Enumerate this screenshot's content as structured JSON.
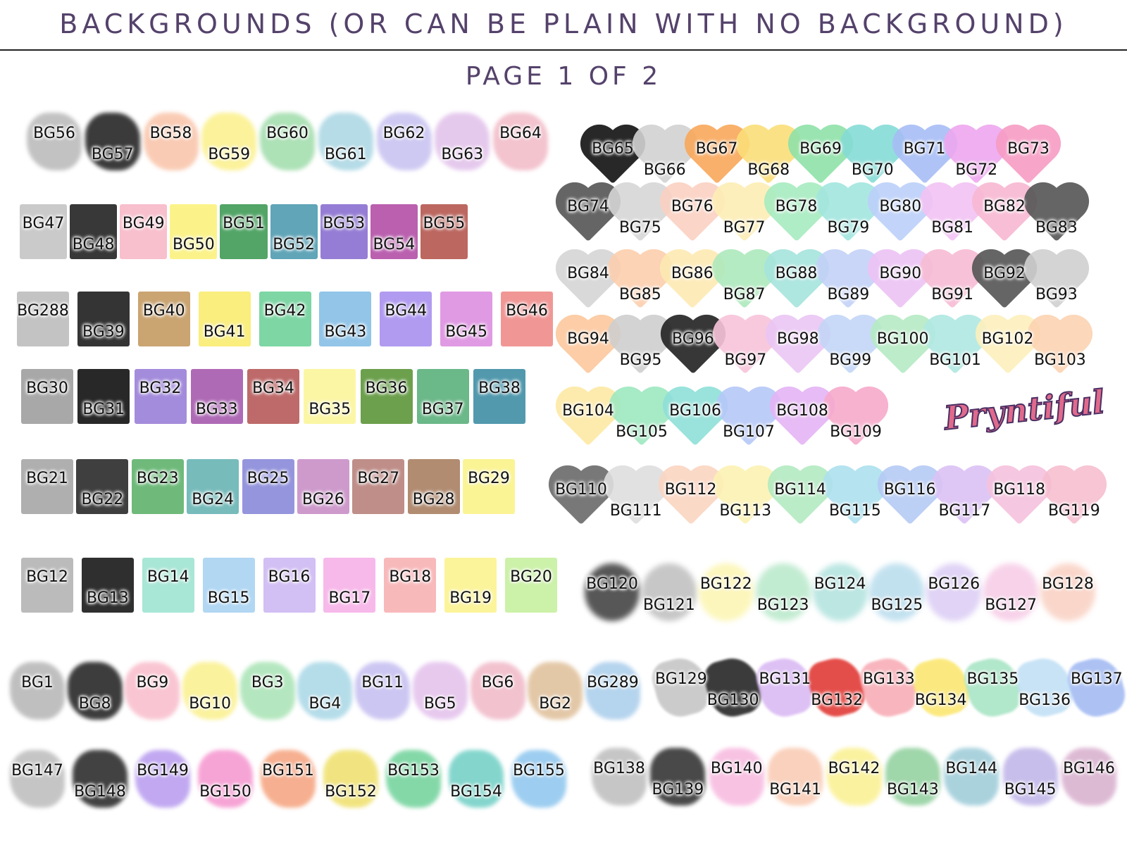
{
  "header": {
    "title": "BACKGROUNDS (OR CAN BE PLAIN WITH NO BACKGROUND)",
    "page": "PAGE 1 OF 2"
  },
  "logo": {
    "text": "Pryntiful",
    "colors": {
      "fill": "#e06a8c",
      "outline": "#4a2f63"
    }
  },
  "rows": [
    {
      "id": "r1",
      "shape": "splotch",
      "items": [
        [
          "BG56",
          "#b8b8b8"
        ],
        [
          "BG57",
          "#1a1a1a"
        ],
        [
          "BG58",
          "#f9c3a8"
        ],
        [
          "BG59",
          "#fbf08a"
        ],
        [
          "BG60",
          "#9fdcaa"
        ],
        [
          "BG61",
          "#a9d6e3"
        ],
        [
          "BG62",
          "#c6c0f0"
        ],
        [
          "BG63",
          "#e1c0ea"
        ],
        [
          "BG64",
          "#f1b9c6"
        ]
      ]
    },
    {
      "id": "r2",
      "shape": "square",
      "items": [
        [
          "BG47",
          "#c4c4c4"
        ],
        [
          "BG48",
          "#222"
        ],
        [
          "BG49",
          "#f7b8c8"
        ],
        [
          "BG50",
          "#fbf27c"
        ],
        [
          "BG51",
          "#3f9b56"
        ],
        [
          "BG52",
          "#4f9bb0"
        ],
        [
          "BG53",
          "#8a6fd0"
        ],
        [
          "BG54",
          "#b24fa6"
        ],
        [
          "BG55",
          "#b5574f"
        ]
      ]
    },
    {
      "id": "r3",
      "shape": "square",
      "items": [
        [
          "BG288",
          "#bdbdbd"
        ],
        [
          "BG39",
          "#1e1e1e"
        ],
        [
          "BG40",
          "#c49a62"
        ],
        [
          "BG41",
          "#f8ec70"
        ],
        [
          "BG42",
          "#6fd19a"
        ],
        [
          "BG43",
          "#86bfe5"
        ],
        [
          "BG44",
          "#a890ee"
        ],
        [
          "BG45",
          "#dd8fe0"
        ],
        [
          "BG46",
          "#ee8c8a"
        ]
      ]
    },
    {
      "id": "r4",
      "shape": "square",
      "items": [
        [
          "BG30",
          "#9e9e9e"
        ],
        [
          "BG31",
          "#111"
        ],
        [
          "BG32",
          "#9a7fd8"
        ],
        [
          "BG33",
          "#a65aae"
        ],
        [
          "BG34",
          "#b75a5a"
        ],
        [
          "BG35",
          "#fbf59a"
        ],
        [
          "BG36",
          "#5c963a"
        ],
        [
          "BG37",
          "#5bb07c"
        ],
        [
          "BG38",
          "#3f8ea5"
        ]
      ]
    },
    {
      "id": "r5",
      "shape": "square",
      "items": [
        [
          "BG21",
          "#a6a6a6"
        ],
        [
          "BG22",
          "#2a2a2a"
        ],
        [
          "BG23",
          "#5fb26d"
        ],
        [
          "BG24",
          "#68b4b4"
        ],
        [
          "BG25",
          "#8a8ad9"
        ],
        [
          "BG26",
          "#c98fc7"
        ],
        [
          "BG27",
          "#b8827c"
        ],
        [
          "BG28",
          "#a88062"
        ],
        [
          "BG29",
          "#faf38a"
        ]
      ]
    },
    {
      "id": "r6",
      "shape": "square",
      "items": [
        [
          "BG12",
          "#b4b4b4"
        ],
        [
          "BG13",
          "#181818"
        ],
        [
          "BG14",
          "#9fe3d0"
        ],
        [
          "BG15",
          "#a9d3f2"
        ],
        [
          "BG16",
          "#cdb8f3"
        ],
        [
          "BG17",
          "#f6b1e8"
        ],
        [
          "BG18",
          "#f7b1b4"
        ],
        [
          "BG19",
          "#fbf38f"
        ],
        [
          "BG20",
          "#c6ef9e"
        ]
      ]
    },
    {
      "id": "r7",
      "shape": "splotch",
      "items": [
        [
          "BG1",
          "#b5b5b5"
        ],
        [
          "BG8",
          "#1c1c1c"
        ],
        [
          "BG9",
          "#f8bccb"
        ],
        [
          "BG10",
          "#faf08c"
        ],
        [
          "BG3",
          "#a8e3b4"
        ],
        [
          "BG4",
          "#a8d7e6"
        ],
        [
          "BG11",
          "#c4bdf0"
        ],
        [
          "BG5",
          "#e3c0ec"
        ],
        [
          "BG6",
          "#f0b8c7"
        ],
        [
          "BG2",
          "#dfbf99"
        ],
        [
          "BG289",
          "#a9cdeb"
        ]
      ]
    },
    {
      "id": "r8",
      "shape": "splotch",
      "items": [
        [
          "BG147",
          "#bcbcbc"
        ],
        [
          "BG148",
          "#222"
        ],
        [
          "BG149",
          "#b79aef"
        ],
        [
          "BG150",
          "#f595cf"
        ],
        [
          "BG151",
          "#f5a27d"
        ],
        [
          "BG152",
          "#efe06a"
        ],
        [
          "BG153",
          "#6fd29a"
        ],
        [
          "BG154",
          "#6fcfc5"
        ],
        [
          "BG155",
          "#8cc5ee"
        ]
      ]
    },
    {
      "id": "h1",
      "shape": "heart",
      "items": [
        [
          "BG65",
          "#111"
        ],
        [
          "BG66",
          "#d2d2d2"
        ],
        [
          "BG67",
          "#f9a85a"
        ],
        [
          "BG68",
          "#fbde78"
        ],
        [
          "BG69",
          "#8fe2a8"
        ],
        [
          "BG70",
          "#86dcd6"
        ],
        [
          "BG71",
          "#a7bdf6"
        ],
        [
          "BG72",
          "#eea7ef"
        ],
        [
          "BG73",
          "#f79cc4"
        ]
      ]
    },
    {
      "id": "h2",
      "shape": "heart",
      "items": [
        [
          "BG74",
          "#555"
        ],
        [
          "BG75",
          "#d6d6d6"
        ],
        [
          "BG76",
          "#fbd1c2"
        ],
        [
          "BG77",
          "#fdeeb5"
        ],
        [
          "BG78",
          "#a7ecc0"
        ],
        [
          "BG79",
          "#a3e6df"
        ],
        [
          "BG80",
          "#bcd0fa"
        ],
        [
          "BG81",
          "#f2c3f3"
        ],
        [
          "BG82",
          "#f8b8d2"
        ],
        [
          "BG83",
          "#555"
        ]
      ]
    },
    {
      "id": "h3",
      "shape": "heart",
      "items": [
        [
          "BG84",
          "#d5d5d5"
        ],
        [
          "BG85",
          "#fccfae"
        ],
        [
          "BG86",
          "#fdeab3"
        ],
        [
          "BG87",
          "#aee9bd"
        ],
        [
          "BG88",
          "#a6e4dd"
        ],
        [
          "BG89",
          "#c4d2f8"
        ],
        [
          "BG90",
          "#edc3f5"
        ],
        [
          "BG91",
          "#f7bcd4"
        ],
        [
          "BG92",
          "#555"
        ],
        [
          "BG93",
          "#d0d0d0"
        ]
      ]
    },
    {
      "id": "h4",
      "shape": "heart",
      "items": [
        [
          "BG94",
          "#fcc89d"
        ],
        [
          "BG95",
          "#cfcfcf"
        ],
        [
          "BG96",
          "#222"
        ],
        [
          "BG97",
          "#f8c4da"
        ],
        [
          "BG98",
          "#eac6f5"
        ],
        [
          "BG99",
          "#c3d6f7"
        ],
        [
          "BG100",
          "#b5ebc4"
        ],
        [
          "BG101",
          "#b0e8e2"
        ],
        [
          "BG102",
          "#fdf0bd"
        ],
        [
          "BG103",
          "#fcd3b2"
        ]
      ]
    },
    {
      "id": "h5",
      "shape": "heart",
      "items": [
        [
          "BG104",
          "#fde9a5"
        ],
        [
          "BG105",
          "#9ee8c0"
        ],
        [
          "BG106",
          "#8fe0d9"
        ],
        [
          "BG107",
          "#b5c8f8"
        ],
        [
          "BG108",
          "#e5b4f5"
        ],
        [
          "BG109",
          "#f7aacb"
        ]
      ]
    },
    {
      "id": "h6",
      "shape": "heart",
      "items": [
        [
          "BG110",
          "#6a6a6a"
        ],
        [
          "BG111",
          "#dedede"
        ],
        [
          "BG112",
          "#fbd5c2"
        ],
        [
          "BG113",
          "#fcf2b4"
        ],
        [
          "BG114",
          "#b3ebc2"
        ],
        [
          "BG115",
          "#aee0ef"
        ],
        [
          "BG116",
          "#b5caf5"
        ],
        [
          "BG117",
          "#dcc2f5"
        ],
        [
          "BG118",
          "#f6c2dd"
        ],
        [
          "BG119",
          "#f7bfd0"
        ]
      ]
    },
    {
      "id": "r9",
      "shape": "splash",
      "items": [
        [
          "BG120",
          "#111"
        ],
        [
          "BG121",
          "#b0b0b0"
        ],
        [
          "BG122",
          "#fbf3a0"
        ],
        [
          "BG123",
          "#a9e4bf"
        ],
        [
          "BG124",
          "#9fdcd6"
        ],
        [
          "BG125",
          "#a9d5e9"
        ],
        [
          "BG126",
          "#d3c1f2"
        ],
        [
          "BG127",
          "#f4bfe0"
        ],
        [
          "BG128",
          "#f8c6b5"
        ]
      ]
    },
    {
      "id": "r10",
      "shape": "brush",
      "items": [
        [
          "BG129",
          "#c3c3c3"
        ],
        [
          "BG130",
          "#1a1a1a"
        ],
        [
          "BG131",
          "#d8b6f3"
        ],
        [
          "BG132",
          "#e0302b"
        ],
        [
          "BG133",
          "#f7a9b2"
        ],
        [
          "BG134",
          "#fbe66a"
        ],
        [
          "BG135",
          "#a4e3c2"
        ],
        [
          "BG136",
          "#bfdff5"
        ],
        [
          "BG137",
          "#9fb8f2"
        ]
      ]
    },
    {
      "id": "r11",
      "shape": "splotch",
      "items": [
        [
          "BG138",
          "#bdbdbd"
        ],
        [
          "BG139",
          "#2a2a2a"
        ],
        [
          "BG140",
          "#f7b9df"
        ],
        [
          "BG141",
          "#f9c9b1"
        ],
        [
          "BG142",
          "#faf08f"
        ],
        [
          "BG143",
          "#8fcf9c"
        ],
        [
          "BG144",
          "#9ccbd8"
        ],
        [
          "BG145",
          "#bfb3e8"
        ],
        [
          "BG146",
          "#d8aecd"
        ]
      ]
    }
  ]
}
